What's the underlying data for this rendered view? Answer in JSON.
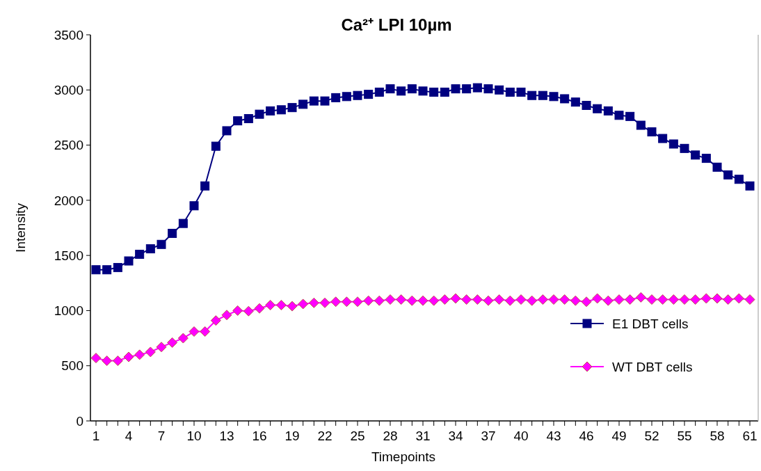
{
  "chart_data": {
    "type": "line",
    "title": "Ca²⁺ LPI 10µm",
    "xlabel": "Timepoints",
    "ylabel": "Intensity",
    "categories": [
      "1",
      null,
      null,
      "4",
      null,
      null,
      "7",
      null,
      null,
      "10",
      null,
      null,
      "13",
      null,
      null,
      "16",
      null,
      null,
      "19",
      null,
      null,
      "22",
      null,
      null,
      "25",
      null,
      null,
      "28",
      null,
      null,
      "31",
      null,
      null,
      "34",
      null,
      null,
      "37",
      null,
      null,
      "40",
      null,
      null,
      "43",
      null,
      null,
      "46",
      null,
      null,
      "49",
      null,
      null,
      "52",
      null,
      null,
      "55",
      null,
      null,
      "58",
      null,
      null,
      "61"
    ],
    "ylim": [
      0,
      3500
    ],
    "yticks": [
      0,
      500,
      1000,
      1500,
      2000,
      2500,
      3000,
      3500
    ],
    "grid": false,
    "legend": "bottom right",
    "line_style": "solid",
    "series": [
      {
        "name": "E1 DBT cells",
        "color": "#000080",
        "marker": "square",
        "values": [
          1370,
          1370,
          1390,
          1450,
          1510,
          1560,
          1600,
          1700,
          1790,
          1950,
          2130,
          2490,
          2630,
          2720,
          2740,
          2780,
          2810,
          2820,
          2840,
          2870,
          2900,
          2900,
          2930,
          2940,
          2950,
          2960,
          2980,
          3010,
          2990,
          3010,
          2990,
          2980,
          2980,
          3010,
          3010,
          3020,
          3010,
          3000,
          2980,
          2980,
          2950,
          2950,
          2940,
          2920,
          2890,
          2860,
          2830,
          2810,
          2770,
          2760,
          2680,
          2620,
          2560,
          2510,
          2470,
          2410,
          2380,
          2300,
          2230,
          2190,
          2130
        ]
      },
      {
        "name": "WT DBT cells",
        "color": "#ff00ff",
        "marker": "diamond",
        "values": [
          570,
          545,
          545,
          580,
          600,
          625,
          670,
          710,
          750,
          810,
          810,
          910,
          960,
          1000,
          995,
          1020,
          1050,
          1050,
          1040,
          1060,
          1070,
          1070,
          1080,
          1080,
          1080,
          1090,
          1090,
          1100,
          1100,
          1090,
          1090,
          1090,
          1100,
          1110,
          1100,
          1100,
          1090,
          1100,
          1090,
          1100,
          1090,
          1100,
          1100,
          1100,
          1090,
          1080,
          1110,
          1090,
          1100,
          1100,
          1120,
          1100,
          1100,
          1100,
          1100,
          1100,
          1110,
          1110,
          1100,
          1110,
          1100
        ]
      }
    ]
  }
}
